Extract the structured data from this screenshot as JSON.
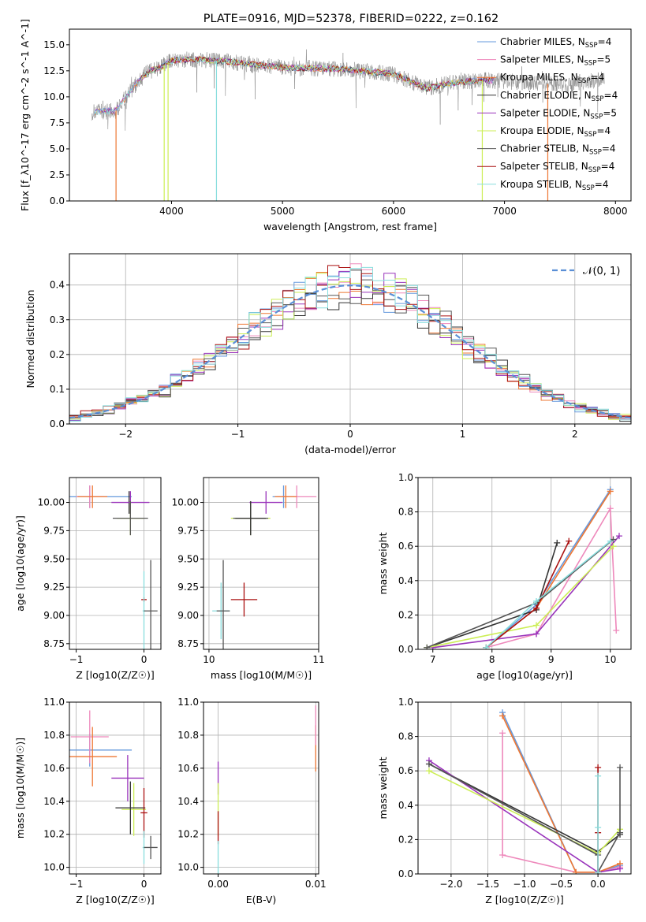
{
  "figure": {
    "title": "PLATE=0916, MJD=52378, FIBERID=0222, z=0.162"
  },
  "colors": {
    "series": [
      "#6699dd",
      "#ee88bb",
      "#ee7733",
      "#333333",
      "#9933bb",
      "#ccee55",
      "#555555",
      "#aa1111",
      "#88dddd"
    ],
    "normal_curve": "#5a8fd6",
    "grid": "#b0b0b0"
  },
  "chart_data": [
    {
      "id": "spectrum",
      "type": "line",
      "title": "PLATE=0916, MJD=52378, FIBERID=0222, z=0.162",
      "xlabel": "wavelength [Angstrom, rest frame]",
      "ylabel": "Flux [f_λ10^-17 erg cm^-2 s^-1 A^-1]",
      "xlim": [
        3080,
        8140
      ],
      "ylim": [
        0,
        16.5
      ],
      "xticks": [
        4000,
        5000,
        6000,
        7000,
        8000
      ],
      "yticks": [
        0.0,
        2.5,
        5.0,
        7.5,
        10.0,
        12.5,
        15.0
      ],
      "grid": false,
      "legend_position": "right",
      "legend": [
        "Chabrier MILES, N_SSP=4",
        "Salpeter MILES, N_SSP=5",
        "Kroupa MILES, N_SSP=4",
        "Chabrier ELODIE, N_SSP=4",
        "Salpeter ELODIE, N_SSP=5",
        "Kroupa ELODIE, N_SSP=4",
        "Chabrier STELIB, N_SSP=4",
        "Salpeter STELIB, N_SSP=4",
        "Kroupa STELIB, N_SSP=4"
      ],
      "continuum_x": [
        3280,
        3500,
        3700,
        3800,
        3900,
        4000,
        4200,
        4500,
        5000,
        5500,
        6000,
        6300,
        6500,
        6800,
        7000,
        7300,
        7600,
        7900
      ],
      "continuum_y": [
        8.5,
        8.7,
        11.5,
        12.5,
        12.8,
        13.5,
        13.6,
        13.4,
        12.8,
        12.7,
        12.2,
        10.8,
        11.3,
        11.6,
        11.5,
        11.3,
        11.1,
        11.8
      ],
      "spike_down_x": [
        3500,
        3934,
        3969,
        4405,
        6800,
        7390
      ],
      "spike_down_y": [
        0.0,
        0.0,
        0.0,
        0.0,
        0.0,
        0.0
      ]
    },
    {
      "id": "residuals",
      "type": "step",
      "xlabel": "(data-model)/error",
      "ylabel": "Normed distribution",
      "xlim": [
        -2.5,
        2.5
      ],
      "ylim": [
        0,
        0.49
      ],
      "xticks": [
        -2,
        -1,
        0,
        1,
        2
      ],
      "yticks": [
        0.0,
        0.1,
        0.2,
        0.3,
        0.4
      ],
      "grid": true,
      "legend_position": "top-right",
      "legend": [
        "N(0,1)"
      ],
      "bin_width": 0.1,
      "bins_start": -2.5
    },
    {
      "id": "age-vs-Z",
      "type": "errorbar",
      "xlabel": "Z [log10(Z/Z☉)]",
      "ylabel": "age [log10(age/yr)]",
      "xlim": [
        -1.1,
        0.25
      ],
      "ylim": [
        8.7,
        10.22
      ],
      "xticks": [
        -1,
        0
      ],
      "yticks": [
        8.75,
        9.0,
        9.25,
        9.5,
        9.75,
        10.0
      ],
      "grid": true,
      "points": [
        {
          "s": 0,
          "x": -0.8,
          "xerr": 0.62,
          "y": 10.05,
          "yerr": 0.1
        },
        {
          "s": 1,
          "x": -0.8,
          "xerr": 0.2,
          "y": 10.05,
          "yerr": 0.1
        },
        {
          "s": 2,
          "x": -0.76,
          "xerr": 0.22,
          "y": 10.05,
          "yerr": 0.1
        },
        {
          "s": 3,
          "x": -0.22,
          "xerr": 0.02,
          "y": 10.0,
          "yerr": 0.1
        },
        {
          "s": 4,
          "x": -0.2,
          "xerr": 0.28,
          "y": 10.0,
          "yerr": 0.1
        },
        {
          "s": 5,
          "x": -0.2,
          "xerr": 0.2,
          "y": 9.86,
          "yerr": 0.15
        },
        {
          "s": 6,
          "x": -0.2,
          "xerr": 0.26,
          "y": 9.86,
          "yerr": 0.15
        },
        {
          "s": 7,
          "x": 0.0,
          "xerr": 0.04,
          "y": 9.14,
          "yerr": 0.02
        },
        {
          "s": 8,
          "x": 0.0,
          "xerr": 0.02,
          "y": 9.04,
          "yerr": 0.35
        },
        {
          "s": 6,
          "x": 0.1,
          "xerr": 0.1,
          "y": 9.04,
          "yerr": 0.45
        }
      ]
    },
    {
      "id": "age-vs-mass",
      "type": "errorbar",
      "xlabel": "mass [log10(M/M☉)]",
      "ylabel": "",
      "xlim": [
        9.95,
        11.0
      ],
      "ylim": [
        8.7,
        10.22
      ],
      "xticks": [
        10,
        11
      ],
      "yticks": [
        8.75,
        9.0,
        9.25,
        9.5,
        9.75,
        10.0
      ],
      "grid": true,
      "points": [
        {
          "s": 0,
          "x": 10.68,
          "xerr": 0.1,
          "y": 10.05,
          "yerr": 0.1
        },
        {
          "s": 1,
          "x": 10.8,
          "xerr": 0.18,
          "y": 10.05,
          "yerr": 0.1
        },
        {
          "s": 2,
          "x": 10.7,
          "xerr": 0.1,
          "y": 10.05,
          "yerr": 0.1
        },
        {
          "s": 4,
          "x": 10.52,
          "xerr": 0.15,
          "y": 10.0,
          "yerr": 0.1
        },
        {
          "s": 5,
          "x": 10.38,
          "xerr": 0.18,
          "y": 9.86,
          "yerr": 0.15
        },
        {
          "s": 6,
          "x": 10.38,
          "xerr": 0.16,
          "y": 9.86,
          "yerr": 0.15
        },
        {
          "s": 3,
          "x": 10.38,
          "xerr": 0.14,
          "y": 9.86,
          "yerr": 0.15
        },
        {
          "s": 7,
          "x": 10.32,
          "xerr": 0.12,
          "y": 9.14,
          "yerr": 0.15
        },
        {
          "s": 8,
          "x": 10.11,
          "xerr": 0.08,
          "y": 9.04,
          "yerr": 0.25
        },
        {
          "s": 6,
          "x": 10.13,
          "xerr": 0.06,
          "y": 9.04,
          "yerr": 0.45
        }
      ]
    },
    {
      "id": "weights-vs-age",
      "type": "line",
      "xlabel": "age [log10(age/yr)]",
      "ylabel": "mass weight",
      "xlim": [
        6.75,
        10.35
      ],
      "ylim": [
        0,
        1.0
      ],
      "xticks": [
        7,
        8,
        9,
        10
      ],
      "yticks": [
        0.0,
        0.2,
        0.4,
        0.6,
        0.8,
        1.0
      ],
      "grid": true,
      "series": [
        {
          "s": 0,
          "x": [
            7.9,
            8.75,
            10.0
          ],
          "y": [
            0.01,
            0.26,
            0.93
          ]
        },
        {
          "s": 1,
          "x": [
            7.9,
            8.75,
            10.0,
            10.1
          ],
          "y": [
            0.01,
            0.09,
            0.82,
            0.11
          ]
        },
        {
          "s": 2,
          "x": [
            7.9,
            8.75,
            10.0
          ],
          "y": [
            0.01,
            0.24,
            0.92
          ]
        },
        {
          "s": 3,
          "x": [
            6.9,
            8.75,
            9.1
          ],
          "y": [
            0.01,
            0.23,
            0.62
          ]
        },
        {
          "s": 4,
          "x": [
            7.0,
            8.75,
            10.15
          ],
          "y": [
            0.01,
            0.09,
            0.66
          ]
        },
        {
          "s": 5,
          "x": [
            6.9,
            8.75,
            10.05
          ],
          "y": [
            0.01,
            0.14,
            0.6
          ]
        },
        {
          "s": 6,
          "x": [
            6.9,
            8.75,
            10.05
          ],
          "y": [
            0.01,
            0.27,
            0.64
          ]
        },
        {
          "s": 7,
          "x": [
            7.9,
            8.75,
            9.3
          ],
          "y": [
            0.01,
            0.24,
            0.63
          ]
        },
        {
          "s": 8,
          "x": [
            7.9,
            8.75,
            10.0
          ],
          "y": [
            0.01,
            0.28,
            0.63
          ]
        }
      ]
    },
    {
      "id": "mass-vs-Z",
      "type": "errorbar",
      "xlabel": "Z [log10(Z/Z☉)]",
      "ylabel": "mass [log10(M/M☉)]",
      "xlim": [
        -1.1,
        0.25
      ],
      "ylim": [
        9.96,
        11.0
      ],
      "xticks": [
        -1,
        0
      ],
      "yticks": [
        10.0,
        10.2,
        10.4,
        10.6,
        10.8,
        11.0
      ],
      "grid": true,
      "points": [
        {
          "s": 0,
          "x": -0.8,
          "xerr": 0.62,
          "y": 10.71,
          "yerr": 0.1
        },
        {
          "s": 1,
          "x": -0.8,
          "xerr": 0.28,
          "y": 10.79,
          "yerr": 0.16
        },
        {
          "s": 2,
          "x": -0.76,
          "xerr": 0.36,
          "y": 10.67,
          "yerr": 0.18
        },
        {
          "s": 4,
          "x": -0.24,
          "xerr": 0.24,
          "y": 10.54,
          "yerr": 0.14
        },
        {
          "s": 5,
          "x": -0.15,
          "xerr": 0.18,
          "y": 10.35,
          "yerr": 0.16
        },
        {
          "s": 3,
          "x": -0.2,
          "xerr": 0.22,
          "y": 10.36,
          "yerr": 0.16
        },
        {
          "s": 7,
          "x": 0.0,
          "xerr": 0.05,
          "y": 10.33,
          "yerr": 0.15
        },
        {
          "s": 8,
          "x": 0.0,
          "xerr": 0.02,
          "y": 10.12,
          "yerr": 0.1
        },
        {
          "s": 6,
          "x": 0.1,
          "xerr": 0.1,
          "y": 10.12,
          "yerr": 0.07
        }
      ]
    },
    {
      "id": "mass-vs-EBV",
      "type": "errorbar",
      "xlabel": "E(B-V)",
      "ylabel": "",
      "xlim": [
        -0.0015,
        0.0103
      ],
      "ylim": [
        9.96,
        11.0
      ],
      "xticks": [
        0.0,
        0.01
      ],
      "yticks": [
        10.0,
        10.2,
        10.4,
        10.6,
        10.8,
        11.0
      ],
      "xtick_labels": [
        "0.00",
        "0.01"
      ],
      "grid": true,
      "points": [
        {
          "s": 4,
          "x": 0.0,
          "xerr": 0.0,
          "y": 10.54,
          "yerr": 0.1
        },
        {
          "s": 5,
          "x": 0.0,
          "xerr": 0.0,
          "y": 10.35,
          "yerr": 0.16
        },
        {
          "s": 7,
          "x": 0.0,
          "xerr": 0.0,
          "y": 10.24,
          "yerr": 0.1
        },
        {
          "s": 8,
          "x": 0.0,
          "xerr": 0.0,
          "y": 10.06,
          "yerr": 0.1
        },
        {
          "s": 2,
          "x": 0.01,
          "xerr": 0.0,
          "y": 10.72,
          "yerr": 0.14
        },
        {
          "s": 1,
          "x": 0.01,
          "xerr": 0.0,
          "y": 10.86,
          "yerr": 0.12
        }
      ]
    },
    {
      "id": "weights-vs-Z",
      "type": "line",
      "xlabel": "Z [log10(Z/Z☉)]",
      "ylabel": "mass weight",
      "xlim": [
        -2.45,
        0.45
      ],
      "ylim": [
        0,
        1.0
      ],
      "xticks": [
        -2.0,
        -1.5,
        -1.0,
        -0.5,
        0.0
      ],
      "xtick_labels": [
        "−2.0",
        "−1.5",
        "−1.0",
        "−0.5",
        "0.0"
      ],
      "yticks": [
        0.0,
        0.2,
        0.4,
        0.6,
        0.8,
        1.0
      ],
      "grid": true,
      "series": [
        {
          "s": 0,
          "x": [
            -1.3,
            -0.3,
            0.0,
            0.3
          ],
          "y": [
            0.94,
            0.01,
            0.01,
            0.05
          ]
        },
        {
          "s": 1,
          "x": [
            -1.3,
            -1.3,
            -0.3,
            0.0,
            0.3
          ],
          "y": [
            0.82,
            0.11,
            0.01,
            0.01,
            0.04
          ]
        },
        {
          "s": 2,
          "x": [
            -1.3,
            -0.3,
            0.0,
            0.3
          ],
          "y": [
            0.92,
            0.01,
            0.01,
            0.06
          ]
        },
        {
          "s": 3,
          "x": [
            -2.3,
            0.0,
            0.3
          ],
          "y": [
            0.64,
            0.13,
            0.23
          ]
        },
        {
          "s": 4,
          "x": [
            -2.3,
            0.0,
            0.3
          ],
          "y": [
            0.66,
            0.01,
            0.03
          ]
        },
        {
          "s": 5,
          "x": [
            -2.3,
            0.0,
            0.3
          ],
          "y": [
            0.6,
            0.12,
            0.26
          ]
        },
        {
          "s": 6,
          "x": [
            -2.3,
            0.0,
            0.0,
            0.3,
            0.3
          ],
          "y": [
            0.64,
            0.11,
            0.01,
            0.24,
            0.62
          ]
        },
        {
          "s": 7,
          "x": [
            0.0,
            0.0,
            0.0
          ],
          "y": [
            0.62,
            0.24,
            0.01
          ]
        },
        {
          "s": 8,
          "x": [
            0.0,
            0.0,
            0.0
          ],
          "y": [
            0.57,
            0.27,
            0.01
          ]
        }
      ]
    }
  ]
}
